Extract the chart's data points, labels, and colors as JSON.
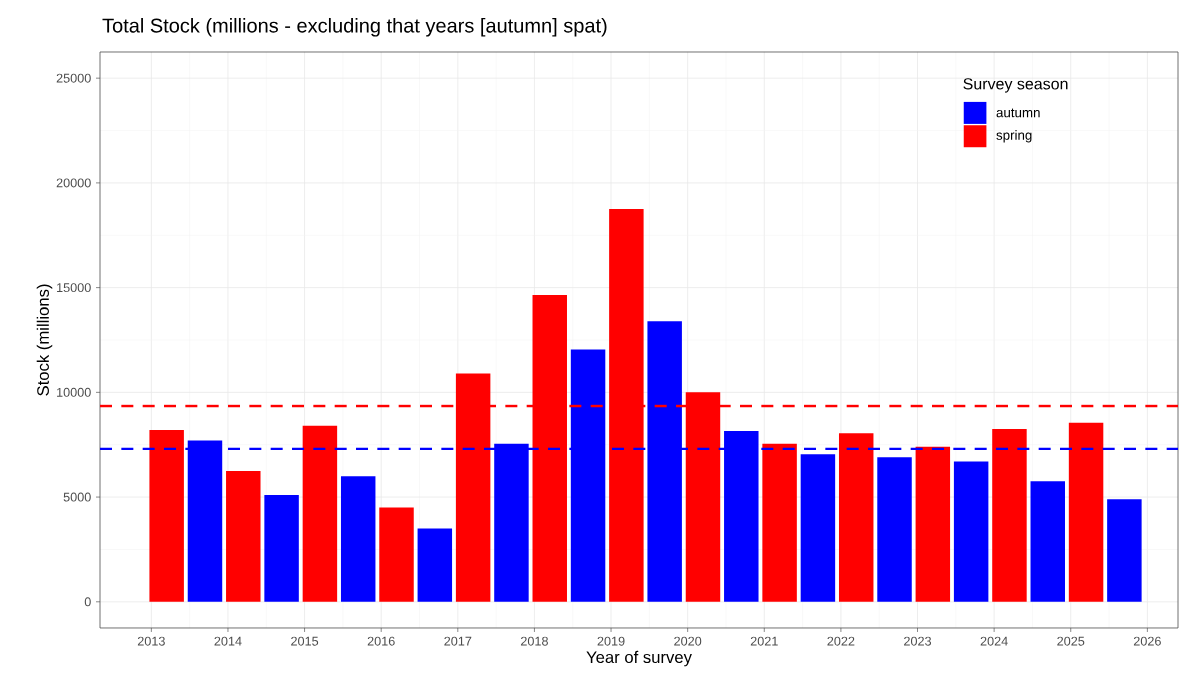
{
  "chart_data": {
    "type": "bar",
    "title": "Total Stock (millions - excluding that years [autumn] spat)",
    "xlabel": "Year of survey",
    "ylabel": "Stock (millions)",
    "legend_title": "Survey season",
    "series": [
      {
        "name": "autumn",
        "color": "#0000ff",
        "x": [
          2013.7,
          2014.7,
          2015.7,
          2016.7,
          2017.7,
          2018.7,
          2019.7,
          2020.7,
          2021.7,
          2022.7,
          2023.7,
          2024.7,
          2025.7
        ],
        "values": [
          7700,
          5100,
          6000,
          3500,
          7550,
          12050,
          13400,
          8150,
          7050,
          6900,
          6700,
          5750,
          4900
        ]
      },
      {
        "name": "spring",
        "color": "#ff0000",
        "x": [
          2013.2,
          2014.2,
          2015.2,
          2016.2,
          2017.2,
          2018.2,
          2019.2,
          2020.2,
          2021.2,
          2022.2,
          2023.2,
          2024.2,
          2025.2
        ],
        "values": [
          8200,
          6250,
          8400,
          4500,
          10900,
          14650,
          18750,
          10000,
          7550,
          8050,
          7400,
          8250,
          8550
        ]
      }
    ],
    "ref_lines": [
      {
        "axis": "y",
        "value": 9350,
        "color": "#ff0000",
        "line_style": "dashed"
      },
      {
        "axis": "y",
        "value": 7300,
        "color": "#0000ff",
        "line_style": "dashed"
      }
    ],
    "xlim": [
      2012.33,
      2026.4
    ],
    "ylim": [
      -1250,
      26250
    ],
    "xticks": [
      2013,
      2014,
      2015,
      2016,
      2017,
      2018,
      2019,
      2020,
      2021,
      2022,
      2023,
      2024,
      2025,
      2026
    ],
    "yticks": [
      0,
      5000,
      10000,
      15000,
      20000,
      25000
    ],
    "grid": true,
    "legend": "top right"
  }
}
